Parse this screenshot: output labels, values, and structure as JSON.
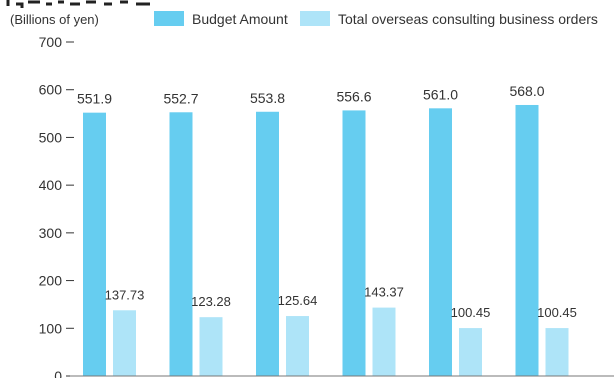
{
  "chart_data": {
    "type": "bar",
    "unit_label": "(Billions of yen)",
    "categories": [
      "",
      "",
      "",
      "",
      "",
      ""
    ],
    "series": [
      {
        "name": "Budget Amount",
        "color": "#66cdf0",
        "values": [
          551.9,
          552.7,
          553.8,
          556.6,
          561.0,
          568.0
        ],
        "labels": [
          "551.9",
          "552.7",
          "553.8",
          "556.6",
          "561.0",
          "568.0"
        ]
      },
      {
        "name": "Total overseas consulting business orders",
        "color": "#aee4f8",
        "values": [
          137.73,
          123.28,
          125.64,
          143.37,
          100.45,
          100.45
        ],
        "labels": [
          "137.73",
          "123.28",
          "125.64",
          "143.37",
          "100.45",
          "100.45"
        ]
      }
    ],
    "ylim": [
      0,
      700
    ],
    "yticks": [
      0,
      100,
      200,
      300,
      400,
      500,
      600,
      700
    ],
    "ytick_labels": [
      "0",
      "100",
      "200",
      "300",
      "400",
      "500",
      "600",
      "700"
    ],
    "legend_position": "top",
    "grid": false
  }
}
